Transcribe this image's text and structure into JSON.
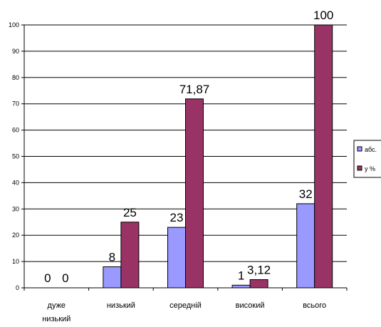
{
  "chart_data": {
    "type": "bar",
    "categories": [
      [
        "дуже",
        "низький"
      ],
      [
        "низький"
      ],
      [
        "середній"
      ],
      [
        "високий"
      ],
      [
        "всього"
      ]
    ],
    "series": [
      {
        "name": "абс.",
        "values": [
          0,
          8,
          23,
          1,
          32
        ],
        "labels": [
          "0",
          "8",
          "23",
          "1",
          "32"
        ],
        "color": "#9999ff"
      },
      {
        "name": "у %",
        "values": [
          0,
          25,
          71.87,
          3.12,
          100
        ],
        "labels": [
          "0",
          "25",
          "71,87",
          "3,12",
          "100"
        ],
        "color": "#993366"
      }
    ],
    "ylim": [
      0,
      100
    ],
    "yticks": [
      "0",
      "10",
      "20",
      "30",
      "40",
      "50",
      "60",
      "70",
      "80",
      "90",
      "100"
    ],
    "grid": true,
    "legend_position": "right"
  }
}
